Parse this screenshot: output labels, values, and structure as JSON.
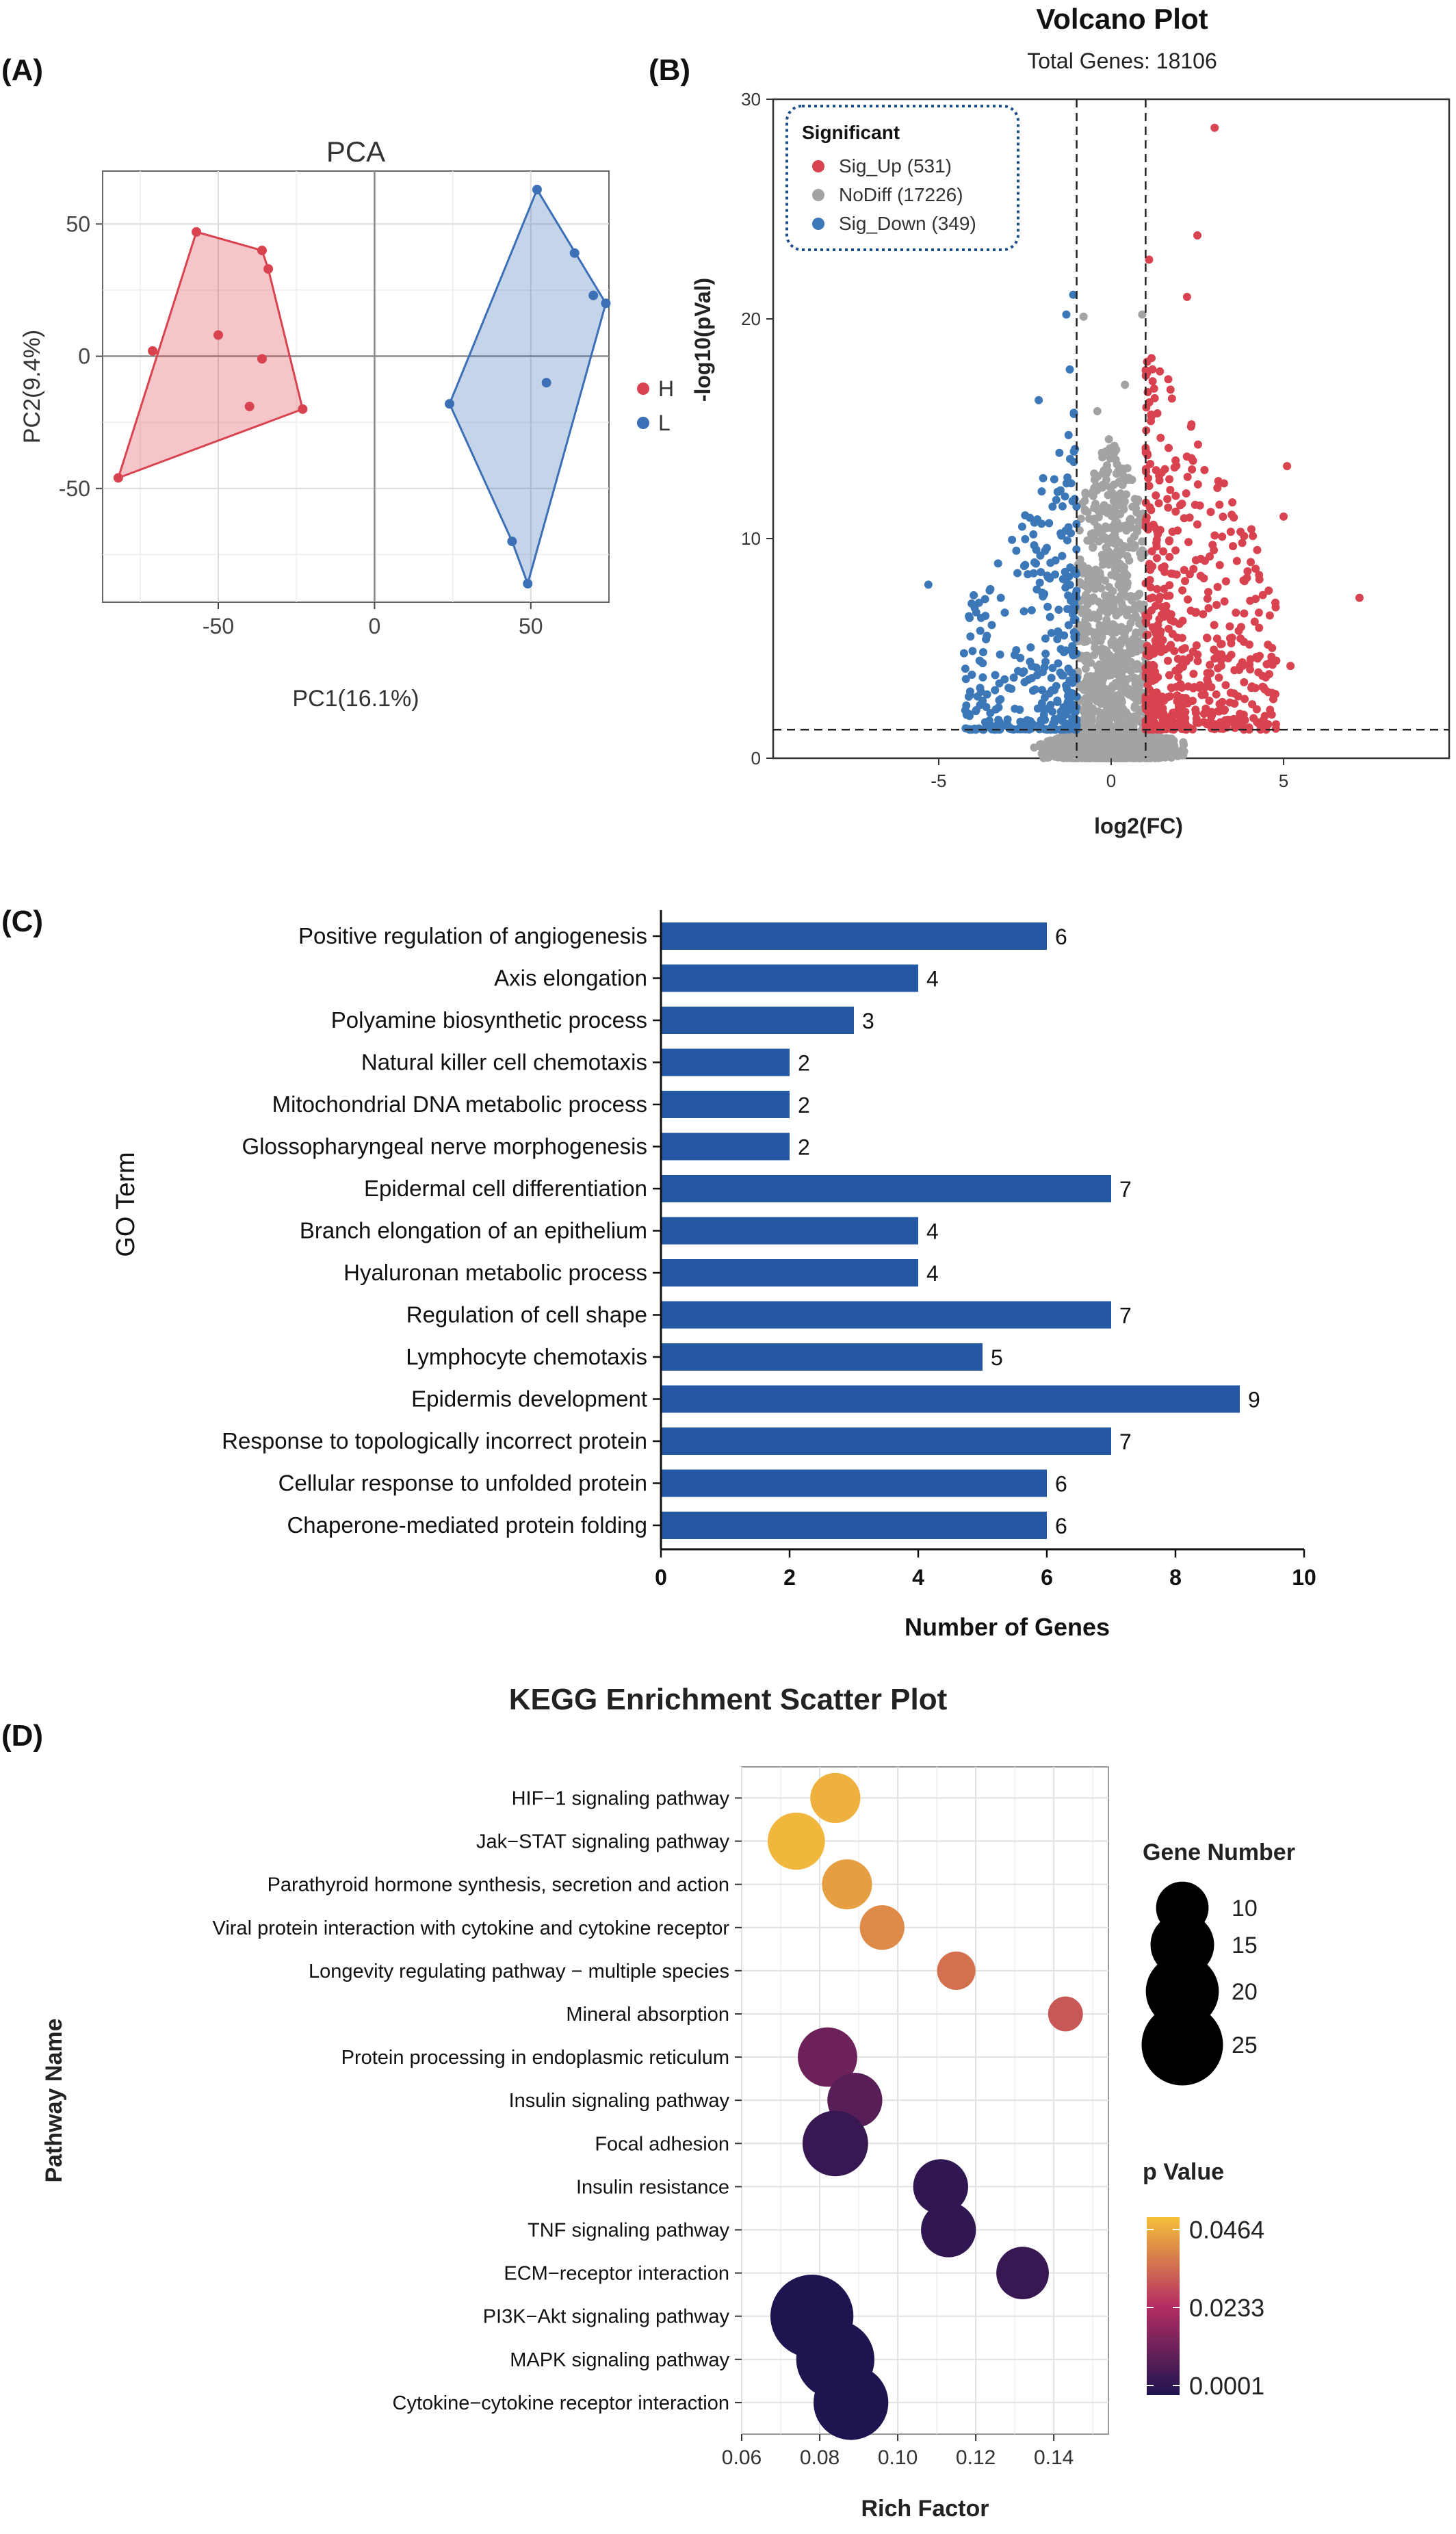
{
  "panel_labels": [
    "(A)",
    "(B)",
    "(C)",
    "(D)"
  ],
  "colors": {
    "up": "#d9434f",
    "nodiff": "#a3a3a3",
    "down": "#3c78b8",
    "bar": "#2458a5",
    "pca_h": "#d9434f",
    "pca_l": "#3c6fb5",
    "kegg_low": "#1e1450",
    "kegg_mid": "#b52d62",
    "kegg_high": "#f5c03a"
  },
  "chart_data": [
    {
      "id": "A",
      "type": "scatter",
      "title": "PCA",
      "xlabel": "PC1(16.1%)",
      "ylabel": "PC2(9.4%)",
      "xlim": [
        -87,
        75
      ],
      "ylim": [
        -93,
        70
      ],
      "xticks": [
        -50,
        0,
        50
      ],
      "yticks": [
        -50,
        0,
        50
      ],
      "grid": true,
      "legend": "right",
      "series": [
        {
          "name": "H",
          "points": [
            [
              -82,
              -46
            ],
            [
              -57,
              47
            ],
            [
              -36,
              40
            ],
            [
              -34,
              33
            ],
            [
              -71,
              2
            ],
            [
              -50,
              8
            ],
            [
              -36,
              -1
            ],
            [
              -40,
              -19
            ],
            [
              -23,
              -20
            ]
          ],
          "hull": [
            [
              -82,
              -46
            ],
            [
              -57,
              47
            ],
            [
              -36,
              40
            ],
            [
              -34,
              33
            ],
            [
              -23,
              -20
            ]
          ]
        },
        {
          "name": "L",
          "points": [
            [
              52,
              63
            ],
            [
              64,
              39
            ],
            [
              70,
              23
            ],
            [
              74,
              20
            ],
            [
              24,
              -18
            ],
            [
              55,
              -10
            ],
            [
              44,
              -70
            ],
            [
              49,
              -86
            ]
          ],
          "hull": [
            [
              52,
              63
            ],
            [
              74,
              20
            ],
            [
              49,
              -86
            ],
            [
              44,
              -70
            ],
            [
              24,
              -18
            ]
          ]
        }
      ]
    },
    {
      "id": "B",
      "type": "scatter",
      "title": "Volcano Plot",
      "subtitle": "Total Genes: 18106",
      "xlabel": "log2(FC)",
      "ylabel": "-log10(pVal)",
      "xlim": [
        -9.8,
        9.8
      ],
      "ylim": [
        0,
        30
      ],
      "xticks": [
        -5,
        0,
        5
      ],
      "yticks": [
        0,
        10,
        20,
        30
      ],
      "x_thresholds": [
        -1,
        1
      ],
      "y_threshold": 1.3,
      "legend": "top-left",
      "legend_title": "Significant",
      "series": [
        {
          "name": "Sig_Up (531)",
          "count": 531
        },
        {
          "name": "NoDiff (17226)",
          "count": 17226
        },
        {
          "name": "Sig_Down (349)",
          "count": 349
        }
      ],
      "highlight_points": {
        "up": [
          [
            3.0,
            28.7
          ],
          [
            2.5,
            23.8
          ],
          [
            1.1,
            22.7
          ],
          [
            2.2,
            21.0
          ],
          [
            5.1,
            13.3
          ],
          [
            5.0,
            11.0
          ],
          [
            7.2,
            7.3
          ],
          [
            5.2,
            4.2
          ],
          [
            4.6,
            6.5
          ],
          [
            3.8,
            9.8
          ]
        ],
        "down": [
          [
            -1.1,
            21.1
          ],
          [
            -1.3,
            20.2
          ],
          [
            -2.1,
            16.3
          ],
          [
            -1.2,
            17.7
          ],
          [
            -5.3,
            7.9
          ],
          [
            -3.2,
            7.3
          ],
          [
            -1.8,
            10.7
          ],
          [
            -4.2,
            2.4
          ],
          [
            -2.8,
            4.7
          ],
          [
            -3.8,
            3.2
          ]
        ],
        "nodiff": [
          [
            0.9,
            20.2
          ],
          [
            -0.8,
            20.1
          ],
          [
            -0.4,
            15.8
          ],
          [
            0.4,
            17.0
          ]
        ]
      }
    },
    {
      "id": "C",
      "type": "bar",
      "orientation": "horizontal",
      "xlabel": "Number of Genes",
      "ylabel": "GO Term",
      "xlim": [
        0,
        10
      ],
      "xticks": [
        0,
        2,
        4,
        6,
        8,
        10
      ],
      "categories": [
        "Positive regulation of angiogenesis",
        "Axis elongation",
        "Polyamine biosynthetic process",
        "Natural killer cell chemotaxis",
        "Mitochondrial DNA metabolic process",
        "Glossopharyngeal nerve morphogenesis",
        "Epidermal cell differentiation",
        "Branch elongation of an epithelium",
        "Hyaluronan metabolic process",
        "Regulation of cell shape",
        "Lymphocyte chemotaxis",
        "Epidermis development",
        "Response to topologically incorrect protein",
        "Cellular response to unfolded protein",
        "Chaperone-mediated protein folding"
      ],
      "values": [
        6,
        4,
        3,
        2,
        2,
        2,
        7,
        4,
        4,
        7,
        5,
        9,
        7,
        6,
        6
      ]
    },
    {
      "id": "D",
      "type": "scatter",
      "title": "KEGG Enrichment Scatter Plot",
      "xlabel": "Rich Factor",
      "ylabel": "Pathway Name",
      "xlim": [
        0.06,
        0.154
      ],
      "xticks": [
        0.06,
        0.08,
        0.1,
        0.12,
        0.14
      ],
      "xtick_labels": [
        "0.06",
        "0.08",
        "0.10",
        "0.12",
        "0.14"
      ],
      "grid": true,
      "categories": [
        "HIF−1 signaling pathway",
        "Jak−STAT signaling pathway",
        "Parathyroid hormone synthesis, secretion and action",
        "Viral protein interaction with cytokine and cytokine receptor",
        "Longevity regulating pathway − multiple species",
        "Mineral absorption",
        "Protein processing in endoplasmic reticulum",
        "Insulin signaling pathway",
        "Focal adhesion",
        "Insulin resistance",
        "TNF signaling pathway",
        "ECM−receptor interaction",
        "PI3K−Akt signaling pathway",
        "MAPK signaling pathway",
        "Cytokine−cytokine receptor interaction"
      ],
      "rich_factor": [
        0.084,
        0.074,
        0.087,
        0.096,
        0.115,
        0.143,
        0.082,
        0.089,
        0.084,
        0.111,
        0.113,
        0.132,
        0.078,
        0.084,
        0.088
      ],
      "gene_number": [
        9,
        12,
        9,
        7,
        5,
        4,
        13,
        11,
        16,
        11,
        11,
        10,
        26,
        23,
        21
      ],
      "p_value": [
        0.044,
        0.045,
        0.041,
        0.038,
        0.034,
        0.03,
        0.012,
        0.009,
        0.004,
        0.003,
        0.003,
        0.004,
        0.0002,
        0.0002,
        0.0001
      ],
      "size_legend": {
        "title": "Gene Number",
        "values": [
          10,
          15,
          20,
          25
        ]
      },
      "color_legend": {
        "title": "p Value",
        "labels": [
          "0.0464",
          "0.0233",
          "0.0001"
        ],
        "min": 0.0001,
        "max": 0.0464
      }
    }
  ]
}
